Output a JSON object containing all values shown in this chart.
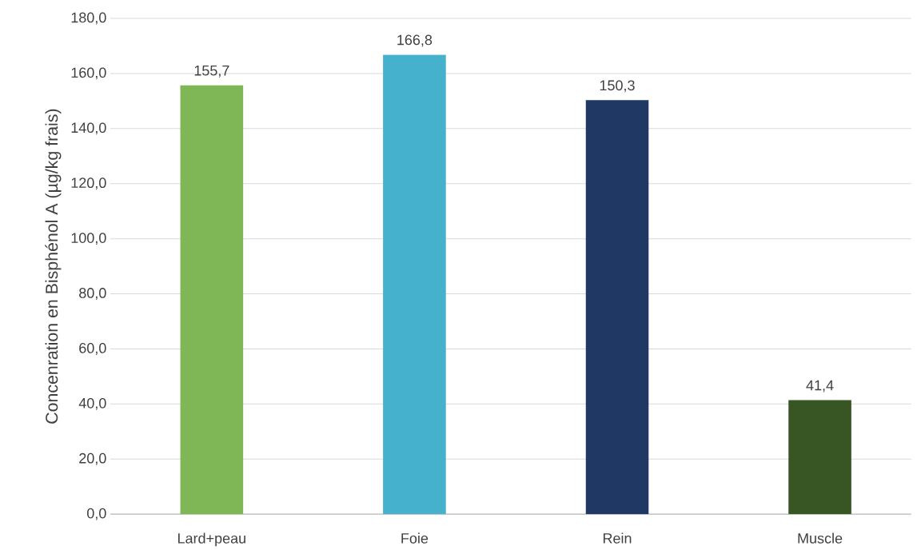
{
  "chart_data": {
    "type": "bar",
    "ylabel": "Concenration en Bisphénol A (µg/kg frais)",
    "categories": [
      "Lard+peau",
      "Foie",
      "Rein",
      "Muscle"
    ],
    "values": [
      155.7,
      166.8,
      150.3,
      41.4
    ],
    "colors": [
      "#7fb656",
      "#46b1cc",
      "#203864",
      "#375623"
    ],
    "value_labels": [
      "155,7",
      "166,8",
      "150,3",
      "41,4"
    ],
    "ylim": [
      0,
      180
    ],
    "yticks": [
      {
        "value": 0,
        "label": "0,0"
      },
      {
        "value": 20,
        "label": "20,0"
      },
      {
        "value": 40,
        "label": "40,0"
      },
      {
        "value": 60,
        "label": "60,0"
      },
      {
        "value": 80,
        "label": "80,0"
      },
      {
        "value": 100,
        "label": "100,0"
      },
      {
        "value": 120,
        "label": "120,0"
      },
      {
        "value": 140,
        "label": "140,0"
      },
      {
        "value": 160,
        "label": "160,0"
      },
      {
        "value": 180,
        "label": "180,0"
      }
    ],
    "grid": "y"
  }
}
